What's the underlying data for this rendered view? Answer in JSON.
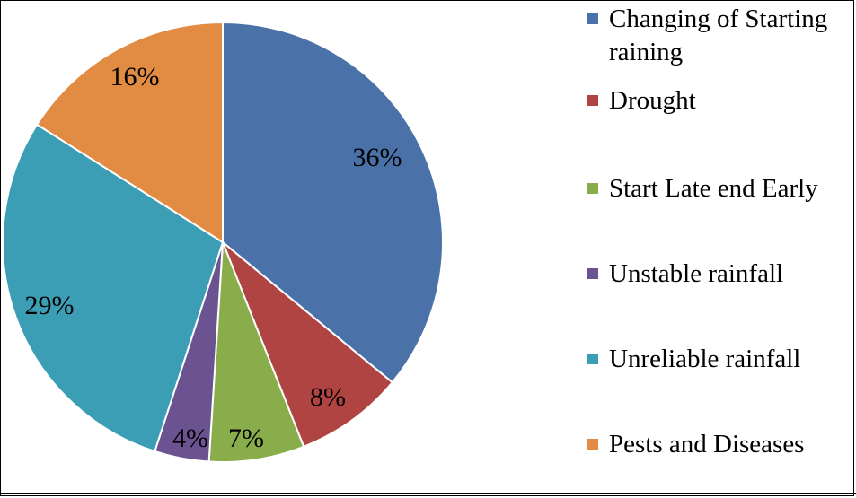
{
  "chart_data": {
    "type": "pie",
    "slices": [
      {
        "label": "Changing of Starting raining",
        "value": 36,
        "value_label": "36%",
        "color": "#4A72A8"
      },
      {
        "label": "Drought",
        "value": 8,
        "value_label": "8%",
        "color": "#B04442"
      },
      {
        "label": "Start Late end Early",
        "value": 7,
        "value_label": "7%",
        "color": "#8AAD4C"
      },
      {
        "label": "Unstable rainfall",
        "value": 4,
        "value_label": "4%",
        "color": "#6B5392"
      },
      {
        "label": "Unreliable rainfall",
        "value": 29,
        "value_label": "29%",
        "color": "#3C9EB5"
      },
      {
        "label": "Pests and Diseases",
        "value": 16,
        "value_label": "16%",
        "color": "#E28B42"
      }
    ],
    "legend_position": "right",
    "start_angle": "top, clockwise"
  }
}
